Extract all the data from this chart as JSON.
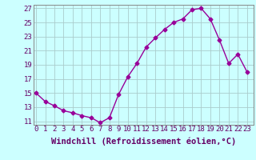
{
  "x": [
    0,
    1,
    2,
    3,
    4,
    5,
    6,
    7,
    8,
    9,
    10,
    11,
    12,
    13,
    14,
    15,
    16,
    17,
    18,
    19,
    20,
    21,
    22,
    23
  ],
  "y": [
    15.0,
    13.8,
    13.2,
    12.5,
    12.2,
    11.8,
    11.5,
    10.8,
    11.5,
    14.8,
    17.3,
    19.2,
    21.5,
    22.8,
    24.0,
    25.0,
    25.5,
    26.8,
    27.0,
    25.5,
    22.5,
    19.2,
    20.5,
    18.0
  ],
  "line_color": "#990099",
  "marker": "D",
  "marker_size": 2.5,
  "bg_color": "#ccffff",
  "grid_color": "#aacccc",
  "xlabel": "Windchill (Refroidissement éolien,°C)",
  "xlabel_color": "#660066",
  "xlabel_fontsize": 7.5,
  "ylim": [
    10.5,
    27.5
  ],
  "yticks": [
    11,
    13,
    15,
    17,
    19,
    21,
    23,
    25,
    27
  ],
  "xtick_labels": [
    "0",
    "1",
    "2",
    "3",
    "4",
    "5",
    "6",
    "7",
    "8",
    "9",
    "1011",
    "1213",
    "1415",
    "1617",
    "1819",
    "2021",
    "2223"
  ],
  "tick_fontsize": 6.5,
  "tick_color": "#660066",
  "xlim": [
    -0.3,
    23.7
  ]
}
